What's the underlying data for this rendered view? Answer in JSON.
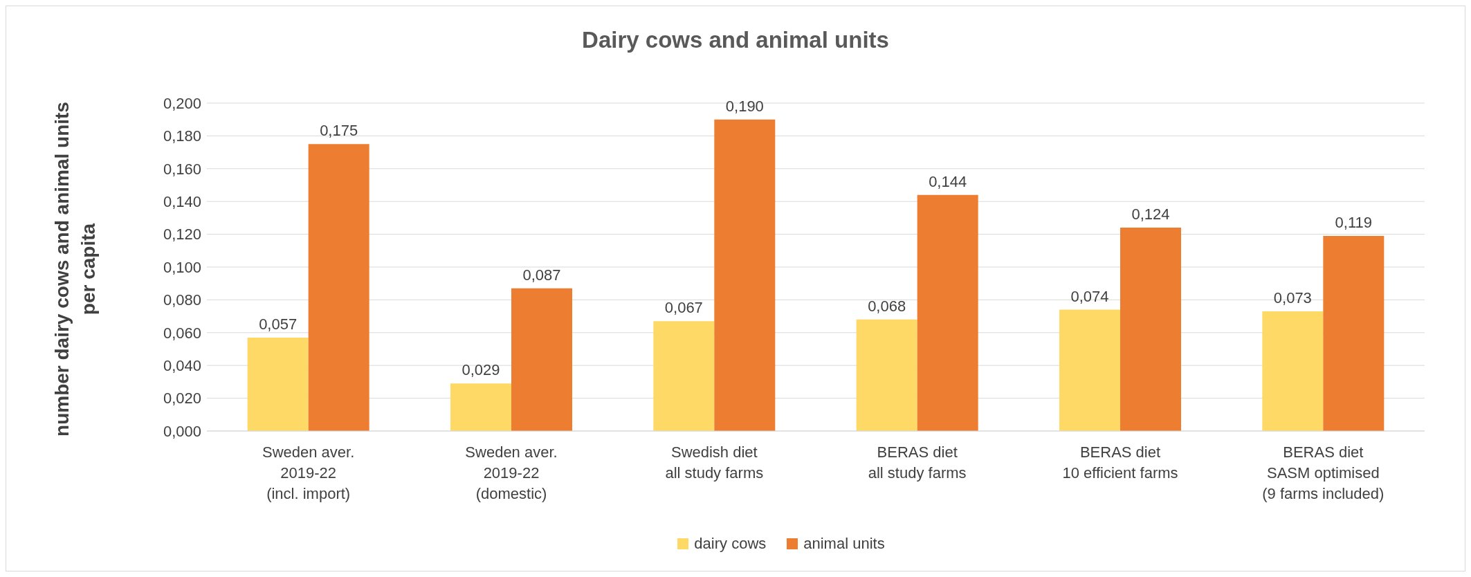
{
  "chart_data": {
    "type": "bar",
    "title": "Dairy cows and animal units",
    "ylabel": "number dairy cows and animal units per capita",
    "categories": [
      "Sweden aver.\n2019-22\n(incl. import)",
      "Sweden aver.\n2019-22\n(domestic)",
      "Swedish diet\nall study farms",
      "BERAS diet\nall study farms",
      "BERAS diet\n10 efficient farms",
      "BERAS diet\nSASM optimised\n(9 farms included)"
    ],
    "series": [
      {
        "name": "dairy cows",
        "color": "#ffd966",
        "values": [
          0.057,
          0.029,
          0.067,
          0.068,
          0.074,
          0.073
        ],
        "value_labels": [
          "0,057",
          "0,029",
          "0,067",
          "0,068",
          "0,074",
          "0,073"
        ]
      },
      {
        "name": "animal units",
        "color": "#ed7d31",
        "values": [
          0.175,
          0.087,
          0.19,
          0.144,
          0.124,
          0.119
        ],
        "value_labels": [
          "0,175",
          "0,087",
          "0,190",
          "0,144",
          "0,124",
          "0,119"
        ]
      }
    ],
    "ylim": [
      0,
      0.2
    ],
    "yticks": [
      {
        "value": 0,
        "label": "0,000"
      },
      {
        "value": 0.02,
        "label": "0,020"
      },
      {
        "value": 0.04,
        "label": "0,040"
      },
      {
        "value": 0.06,
        "label": "0,060"
      },
      {
        "value": 0.08,
        "label": "0,080"
      },
      {
        "value": 0.1,
        "label": "0,100"
      },
      {
        "value": 0.12,
        "label": "0,120"
      },
      {
        "value": 0.14,
        "label": "0,140"
      },
      {
        "value": 0.16,
        "label": "0,160"
      },
      {
        "value": 0.18,
        "label": "0,180"
      },
      {
        "value": 0.2,
        "label": "0,200"
      }
    ],
    "grid": "y",
    "legend": "bottom"
  }
}
